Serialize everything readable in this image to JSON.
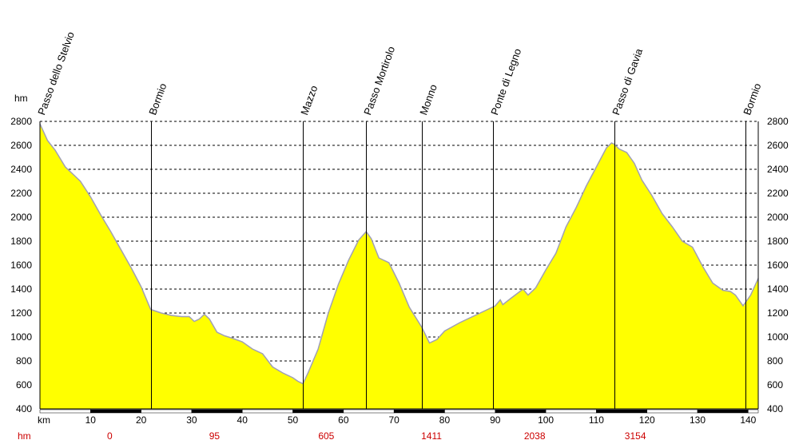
{
  "chart_data": {
    "type": "area",
    "y_unit_label": "hm",
    "ylim": [
      400,
      2800
    ],
    "y_ticks": [
      400,
      600,
      800,
      1000,
      1200,
      1400,
      1600,
      1800,
      2000,
      2200,
      2400,
      2600,
      2800
    ],
    "xlim": [
      0,
      142
    ],
    "x_unit_label": "km",
    "x_ticks": [
      10,
      20,
      30,
      40,
      50,
      60,
      70,
      80,
      90,
      100,
      110,
      120,
      130,
      140
    ],
    "grid": "horizontal dashed",
    "fill_color": "#ffff00",
    "line_color": "#a0a0b4",
    "profile": {
      "x": [
        0,
        1.5,
        3,
        5,
        6.5,
        8,
        10,
        12,
        14,
        16,
        18,
        20,
        21.9,
        24,
        26,
        28,
        29.5,
        30.5,
        31.5,
        32.5,
        33.5,
        35,
        36.5,
        38,
        40,
        42,
        44,
        46,
        48,
        50,
        51,
        52,
        53,
        55,
        57,
        59,
        61,
        63,
        64.5,
        65.5,
        67,
        69,
        71,
        73,
        75.5,
        77,
        78.5,
        80,
        83,
        86,
        89,
        90,
        91,
        91.5,
        93,
        95.5,
        96.5,
        98,
        100,
        102,
        104,
        106,
        108,
        110,
        112,
        113,
        113.5,
        114.5,
        116,
        117.5,
        119,
        121,
        123,
        125,
        127,
        129,
        131,
        133,
        135,
        136.5,
        137.5,
        139,
        140.5,
        142
      ],
      "y": [
        2780,
        2640,
        2560,
        2420,
        2360,
        2300,
        2170,
        2020,
        1880,
        1730,
        1580,
        1420,
        1230,
        1200,
        1180,
        1170,
        1170,
        1130,
        1150,
        1190,
        1150,
        1040,
        1010,
        990,
        960,
        900,
        860,
        750,
        700,
        660,
        630,
        610,
        700,
        900,
        1200,
        1440,
        1640,
        1810,
        1880,
        1820,
        1660,
        1620,
        1450,
        1250,
        1080,
        950,
        980,
        1050,
        1120,
        1180,
        1240,
        1260,
        1310,
        1270,
        1320,
        1400,
        1350,
        1410,
        1560,
        1700,
        1920,
        2080,
        2260,
        2420,
        2580,
        2620,
        2610,
        2570,
        2540,
        2450,
        2310,
        2180,
        2030,
        1920,
        1800,
        1750,
        1590,
        1450,
        1390,
        1380,
        1350,
        1260,
        1350,
        1490
      ]
    },
    "places": [
      {
        "name": "Passo dello Stelvio",
        "km": 0
      },
      {
        "name": "Bormio",
        "km": 21.9
      },
      {
        "name": "Mazzo",
        "km": 52
      },
      {
        "name": "Passo  Mortirolo",
        "km": 64.5
      },
      {
        "name": "Monno",
        "km": 75.5
      },
      {
        "name": "Ponte di Legno",
        "km": 89.5
      },
      {
        "name": "Passo di Gavia",
        "km": 113.5
      },
      {
        "name": "Bormio",
        "km": 139.5
      }
    ],
    "hm_row": [
      {
        "km": 13.8,
        "value": "0"
      },
      {
        "km": 34.5,
        "value": "95"
      },
      {
        "km": 56.6,
        "value": "605"
      },
      {
        "km": 77.4,
        "value": "1411"
      },
      {
        "km": 97.8,
        "value": "2038"
      },
      {
        "km": 117.7,
        "value": "3154"
      }
    ]
  }
}
